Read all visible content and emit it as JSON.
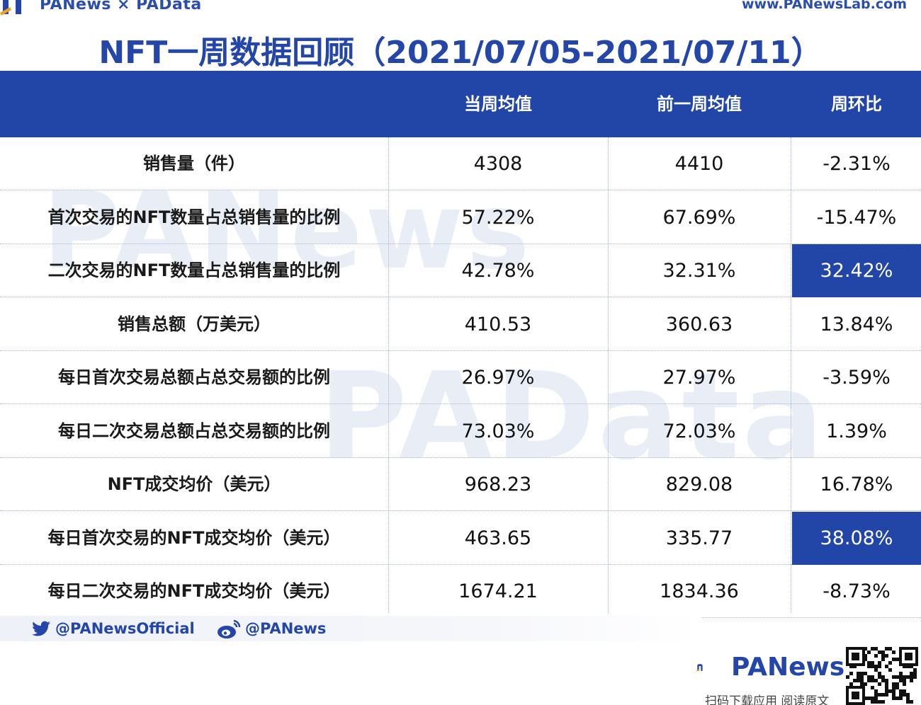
{
  "header": {
    "brand": "PANews × PAData",
    "site": "www.PANewsLab.com",
    "title": "NFT一周数据回顾（2021/07/05-2021/07/11）"
  },
  "table": {
    "columns": [
      "",
      "当周均值",
      "前一周均值",
      "周环比"
    ],
    "rows": [
      {
        "label": "销售量（件）",
        "current": "4308",
        "previous": "4410",
        "change": "-2.31%"
      },
      {
        "label": "首次交易的NFT数量占总销售量的比例",
        "current": "57.22%",
        "previous": "67.69%",
        "change": "-15.47%"
      },
      {
        "label": "二次交易的NFT数量占总销售量的比例",
        "current": "42.78%",
        "previous": "32.31%",
        "change": "32.42%",
        "highlight": true
      },
      {
        "label": "销售总额（万美元）",
        "current": "410.53",
        "previous": "360.63",
        "change": "13.84%"
      },
      {
        "label": "每日首次交易总额占总交易额的比例",
        "current": "26.97%",
        "previous": "27.97%",
        "change": "-3.59%"
      },
      {
        "label": "每日二次交易总额占总交易额的比例",
        "current": "73.03%",
        "previous": "72.03%",
        "change": "1.39%"
      },
      {
        "label": "NFT成交均价（美元）",
        "current": "968.23",
        "previous": "829.08",
        "change": "16.78%"
      },
      {
        "label": "每日首次交易的NFT成交均价（美元）",
        "current": "463.65",
        "previous": "335.77",
        "change": "38.08%",
        "highlight": true
      },
      {
        "label": "每日二次交易的NFT成交均价（美元）",
        "current": "1674.21",
        "previous": "1834.36",
        "change": "-8.73%"
      }
    ]
  },
  "watermarks": [
    "PANews",
    "PAData"
  ],
  "footer": {
    "twitter": "@PANewsOfficial",
    "weibo": "@PANews",
    "brand": "PANews",
    "cta": "扫码下载应用  阅读原文",
    "icons": {
      "twitter": "twitter-icon",
      "weibo": "weibo-icon",
      "qr": "qr-code-icon"
    }
  },
  "colors": {
    "accent": "#2146a8",
    "text": "#1a1a1a",
    "highlight_text": "#ffffff"
  }
}
